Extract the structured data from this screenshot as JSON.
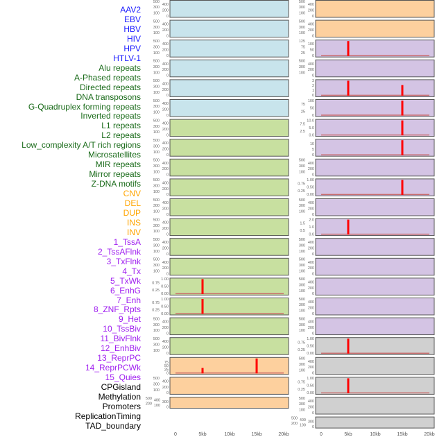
{
  "labels": [
    {
      "text": "AAV2",
      "color": "#1a1aff"
    },
    {
      "text": "EBV",
      "color": "#1a1aff"
    },
    {
      "text": "HBV",
      "color": "#1a1aff"
    },
    {
      "text": "HIV",
      "color": "#1a1aff"
    },
    {
      "text": "HPV",
      "color": "#1a1aff"
    },
    {
      "text": "HTLV-1",
      "color": "#1a1aff"
    },
    {
      "text": "Alu repeats",
      "color": "#1a6b1a"
    },
    {
      "text": "A-Phased repeats",
      "color": "#1a6b1a"
    },
    {
      "text": "Directed repeats",
      "color": "#1a6b1a"
    },
    {
      "text": "DNA transposons",
      "color": "#1a6b1a"
    },
    {
      "text": "G-Quadruplex forming repeats",
      "color": "#1a6b1a"
    },
    {
      "text": "Inverted repeats",
      "color": "#1a6b1a"
    },
    {
      "text": "L1 repeats",
      "color": "#1a6b1a"
    },
    {
      "text": "L2 repeats",
      "color": "#1a6b1a"
    },
    {
      "text": "Low_complexity A/T rich regions",
      "color": "#1a6b1a"
    },
    {
      "text": "Microsatellites",
      "color": "#1a6b1a"
    },
    {
      "text": "MIR repeats",
      "color": "#1a6b1a"
    },
    {
      "text": "Mirror repeats",
      "color": "#1a6b1a"
    },
    {
      "text": "Z-DNA motifs",
      "color": "#1a6b1a"
    },
    {
      "text": "CNV",
      "color": "#ffa500"
    },
    {
      "text": "DEL",
      "color": "#ffa500"
    },
    {
      "text": "DUP",
      "color": "#ffa500"
    },
    {
      "text": "INS",
      "color": "#ffa500"
    },
    {
      "text": "INV",
      "color": "#ffa500"
    },
    {
      "text": "1_TssA",
      "color": "#a020f0"
    },
    {
      "text": "2_TssAFlnk",
      "color": "#a020f0"
    },
    {
      "text": "3_TxFlnk",
      "color": "#a020f0"
    },
    {
      "text": "4_Tx",
      "color": "#a020f0"
    },
    {
      "text": "5_TxWk",
      "color": "#a020f0"
    },
    {
      "text": "6_EnhG",
      "color": "#a020f0"
    },
    {
      "text": "7_Enh",
      "color": "#a020f0"
    },
    {
      "text": "8_ZNF_Rpts",
      "color": "#a020f0"
    },
    {
      "text": "9_Het",
      "color": "#a020f0"
    },
    {
      "text": "10_TssBiv",
      "color": "#a020f0"
    },
    {
      "text": "11_BivFlnk",
      "color": "#a020f0"
    },
    {
      "text": "12_EnhBiv",
      "color": "#a020f0"
    },
    {
      "text": "13_ReprPC",
      "color": "#a020f0"
    },
    {
      "text": "14_ReprPCWk",
      "color": "#a020f0"
    },
    {
      "text": "15_Quies",
      "color": "#a020f0"
    },
    {
      "text": "CPGisland",
      "color": "#000000"
    },
    {
      "text": "Methylation",
      "color": "#000000"
    },
    {
      "text": "Promoters",
      "color": "#000000"
    },
    {
      "text": "ReplicationTiming",
      "color": "#000000"
    },
    {
      "text": "TAD_boundary",
      "color": "#000000"
    }
  ],
  "colors": {
    "blue": "#c8e4ec",
    "green": "#c8e0a0",
    "orange": "#fdd09e",
    "purple": "#d4c4e4",
    "grey": "#d0d0d0",
    "bar": "#ff0000",
    "baseline": "#c86464"
  },
  "chart_data": {
    "type": "bar",
    "xlim": [
      0,
      20000
    ],
    "xticks": [
      {
        "v": 0,
        "label": "0"
      },
      {
        "v": 5000,
        "label": "5kb"
      },
      {
        "v": 10000,
        "label": "10kb"
      },
      {
        "v": 15000,
        "label": "15kb"
      },
      {
        "v": 20000,
        "label": "20kb"
      }
    ],
    "columns": [
      {
        "name": "left",
        "panels": [
          {
            "bg": "blue",
            "yticks": [
              0,
              100,
              200,
              300,
              400,
              500
            ],
            "bars": []
          },
          {
            "bg": "blue",
            "yticks": [
              0,
              100,
              200,
              300,
              400,
              500
            ],
            "bars": []
          },
          {
            "bg": "blue",
            "yticks": [
              0,
              100,
              200,
              300,
              400,
              500
            ],
            "bars": []
          },
          {
            "bg": "blue",
            "yticks": [
              0,
              100,
              200,
              300,
              400,
              500
            ],
            "bars": []
          },
          {
            "bg": "blue",
            "yticks": [
              0,
              100,
              200,
              300,
              400,
              500
            ],
            "bars": []
          },
          {
            "bg": "blue",
            "yticks": [
              0,
              100,
              200,
              300,
              400,
              500
            ],
            "bars": []
          },
          {
            "bg": "green",
            "yticks": [
              0,
              100,
              200,
              300,
              400,
              500
            ],
            "bars": []
          },
          {
            "bg": "green",
            "yticks": [
              0,
              100,
              200,
              300,
              400,
              500
            ],
            "bars": []
          },
          {
            "bg": "green",
            "yticks": [
              0,
              100,
              200,
              300,
              400,
              500
            ],
            "bars": []
          },
          {
            "bg": "green",
            "yticks": [
              0,
              100,
              200,
              300,
              400,
              500
            ],
            "bars": []
          },
          {
            "bg": "green",
            "yticks": [
              0,
              100,
              200,
              300,
              400,
              500
            ],
            "bars": []
          },
          {
            "bg": "green",
            "yticks": [
              0,
              100,
              200,
              300,
              400,
              500
            ],
            "bars": []
          },
          {
            "bg": "green",
            "yticks": [
              0,
              100,
              200,
              300,
              400,
              500
            ],
            "bars": []
          },
          {
            "bg": "green",
            "yticks": [
              0,
              100,
              200,
              300,
              400,
              500
            ],
            "bars": []
          },
          {
            "bg": "green",
            "yticks": [
              "0.00",
              "0.25",
              "0.50",
              "0.75",
              "1.00"
            ],
            "bars": [
              {
                "x": 5000,
                "y": 1
              }
            ]
          },
          {
            "bg": "green",
            "yticks": [
              "0.00",
              "0.25",
              "0.50",
              "0.75",
              "1.00"
            ],
            "bars": [
              {
                "x": 5000,
                "y": 1
              }
            ]
          },
          {
            "bg": "green",
            "yticks": [
              0,
              100,
              200,
              300,
              400,
              500
            ],
            "bars": []
          },
          {
            "bg": "green",
            "yticks": [
              0,
              100,
              200,
              300,
              400,
              500
            ],
            "bars": []
          },
          {
            "bg": "orange",
            "yticks": [
              0,
              25,
              50,
              75
            ],
            "ymax": 100,
            "bars": [
              {
                "x": 5000,
                "y": 35
              },
              {
                "x": 15000,
                "y": 100
              }
            ]
          },
          {
            "bg": "orange",
            "yticks": [
              0,
              100,
              200,
              300,
              400,
              500
            ],
            "bars": []
          },
          {
            "bg": "orange",
            "yticks": [
              0,
              100,
              200,
              300,
              400,
              500
            ],
            "bars": [],
            "short": true
          }
        ]
      },
      {
        "name": "right",
        "panels": [
          {
            "bg": "orange",
            "yticks": [
              0,
              100,
              200,
              300,
              400,
              500
            ],
            "bars": []
          },
          {
            "bg": "orange",
            "yticks": [
              0,
              100,
              200,
              300,
              400,
              500
            ],
            "bars": []
          },
          {
            "bg": "purple",
            "yticks": [
              0,
              25,
              50,
              75,
              100,
              125
            ],
            "bars": [
              {
                "x": 5000,
                "y": 125
              }
            ]
          },
          {
            "bg": "purple",
            "yticks": [
              0,
              100,
              200,
              300,
              400,
              500
            ],
            "bars": []
          },
          {
            "bg": "purple",
            "yticks": [
              0,
              1,
              2,
              3
            ],
            "bars": [
              {
                "x": 5000,
                "y": 3
              },
              {
                "x": 15000,
                "y": 2.1
              }
            ]
          },
          {
            "bg": "purple",
            "yticks": [
              0,
              25,
              50,
              75,
              100
            ],
            "bars": [
              {
                "x": 15000,
                "y": 100
              }
            ]
          },
          {
            "bg": "purple",
            "yticks": [
              "0.0",
              "2.5",
              "5.0",
              "7.5",
              "10.0"
            ],
            "bars": [
              {
                "x": 15000,
                "y": 10
              }
            ]
          },
          {
            "bg": "purple",
            "yticks": [
              0,
              5,
              10
            ],
            "ymax": 13,
            "bars": [
              {
                "x": 15000,
                "y": 13
              }
            ]
          },
          {
            "bg": "purple",
            "yticks": [
              0,
              100,
              200,
              300,
              400,
              500
            ],
            "bars": []
          },
          {
            "bg": "purple",
            "yticks": [
              "0.00",
              "0.25",
              "0.50",
              "0.75",
              "1.00"
            ],
            "bars": [
              {
                "x": 15000,
                "y": 1
              }
            ]
          },
          {
            "bg": "purple",
            "yticks": [
              0,
              100,
              200,
              300,
              400,
              500
            ],
            "bars": []
          },
          {
            "bg": "purple",
            "yticks": [
              "0.0",
              "0.5",
              "1.0",
              "1.5",
              "2.0"
            ],
            "bars": [
              {
                "x": 5000,
                "y": 2
              }
            ]
          },
          {
            "bg": "purple",
            "yticks": [
              0,
              100,
              200,
              300,
              400,
              500
            ],
            "bars": []
          },
          {
            "bg": "purple",
            "yticks": [
              0,
              100,
              200,
              300,
              400,
              500
            ],
            "bars": []
          },
          {
            "bg": "purple",
            "yticks": [
              0,
              100,
              200,
              300,
              400,
              500
            ],
            "bars": []
          },
          {
            "bg": "purple",
            "yticks": [
              0,
              100,
              200,
              300,
              400,
              500
            ],
            "bars": []
          },
          {
            "bg": "purple",
            "yticks": [
              0,
              100,
              200,
              300,
              400,
              500
            ],
            "bars": []
          },
          {
            "bg": "grey",
            "yticks": [
              "0.00",
              "0.25",
              "0.50",
              "0.75",
              "1.00"
            ],
            "bars": [
              {
                "x": 5000,
                "y": 1
              }
            ]
          },
          {
            "bg": "grey",
            "yticks": [
              0,
              100,
              200,
              300,
              400,
              500
            ],
            "bars": []
          },
          {
            "bg": "grey",
            "yticks": [
              "0.00",
              "0.25",
              "0.50",
              "0.75",
              "1.00"
            ],
            "bars": [
              {
                "x": 5000,
                "y": 1
              }
            ]
          },
          {
            "bg": "grey",
            "yticks": [
              0,
              100,
              200,
              300,
              400,
              500
            ],
            "bars": []
          },
          {
            "bg": "grey",
            "yticks": [
              0,
              100,
              200,
              300,
              400,
              500
            ],
            "bars": [],
            "short": true
          }
        ]
      }
    ]
  }
}
